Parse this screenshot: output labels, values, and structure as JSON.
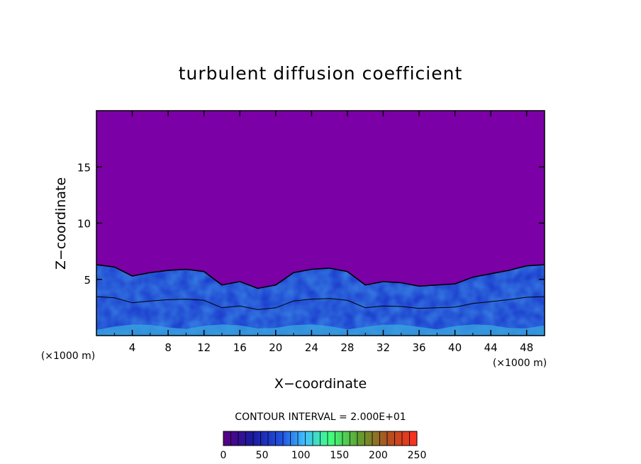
{
  "chart_data": {
    "type": "heatmap",
    "title": "turbulent diffusion coefficient",
    "xlabel": "X−coordinate",
    "ylabel": "Z−coordinate",
    "x_unit_left": "(×1000 m)",
    "x_unit_right": "(×1000 m)",
    "xlim": [
      0,
      50
    ],
    "ylim": [
      0,
      20
    ],
    "x_ticks": [
      4,
      8,
      12,
      16,
      20,
      24,
      28,
      32,
      36,
      40,
      44,
      48
    ],
    "y_ticks": [
      5,
      10,
      15
    ],
    "contour_note": "CONTOUR INTERVAL = 2.000E+01",
    "contour_interval": 20,
    "colorbar": {
      "min": 0,
      "max": 250,
      "tick_labels": [
        "0",
        "50",
        "100",
        "150",
        "200",
        "250"
      ]
    },
    "background_color": "#7b00a6",
    "boundary_layer_top": [
      [
        0,
        6.3
      ],
      [
        2,
        6.1
      ],
      [
        4,
        5.3
      ],
      [
        6,
        5.6
      ],
      [
        8,
        5.8
      ],
      [
        10,
        5.9
      ],
      [
        12,
        5.7
      ],
      [
        14,
        4.5
      ],
      [
        16,
        4.8
      ],
      [
        18,
        4.2
      ],
      [
        20,
        4.5
      ],
      [
        22,
        5.6
      ],
      [
        24,
        5.9
      ],
      [
        26,
        6.0
      ],
      [
        28,
        5.7
      ],
      [
        30,
        4.5
      ],
      [
        32,
        4.8
      ],
      [
        34,
        4.7
      ],
      [
        36,
        4.4
      ],
      [
        38,
        4.5
      ],
      [
        40,
        4.6
      ],
      [
        42,
        5.2
      ],
      [
        44,
        5.5
      ],
      [
        46,
        5.8
      ],
      [
        48,
        6.2
      ],
      [
        50,
        6.3
      ]
    ]
  }
}
